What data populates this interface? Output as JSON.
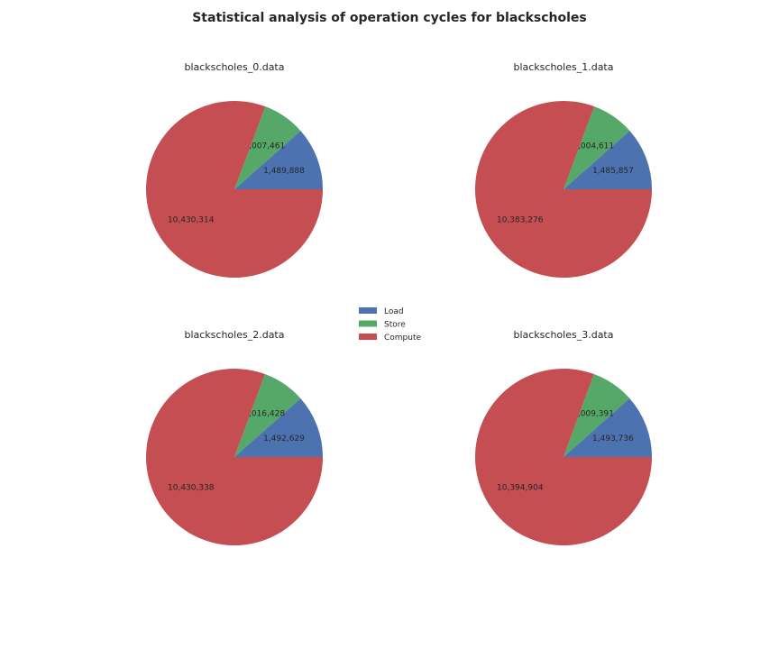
{
  "title": "Statistical analysis of operation cycles for blackscholes",
  "legend": {
    "placement": "center",
    "entries": [
      "Load",
      "Store",
      "Compute"
    ]
  },
  "colors": {
    "Load": "#4c72b0",
    "Store": "#55a868",
    "Compute": "#c44e52"
  },
  "chart_data": [
    {
      "type": "pie",
      "title": "blackscholes_0.data",
      "labels": [
        "Load",
        "Store",
        "Compute"
      ],
      "values": [
        1489888,
        1007461,
        10430314
      ],
      "value_labels": [
        "1,489,888",
        "1,007,461",
        "10,430,314"
      ]
    },
    {
      "type": "pie",
      "title": "blackscholes_1.data",
      "labels": [
        "Load",
        "Store",
        "Compute"
      ],
      "values": [
        1485857,
        1004611,
        10383276
      ],
      "value_labels": [
        "1,485,857",
        "1,004,611",
        "10,383,276"
      ]
    },
    {
      "type": "pie",
      "title": "blackscholes_2.data",
      "labels": [
        "Load",
        "Store",
        "Compute"
      ],
      "values": [
        1492629,
        1016428,
        10430338
      ],
      "value_labels": [
        "1,492,629",
        "1,016,428",
        "10,430,338"
      ]
    },
    {
      "type": "pie",
      "title": "blackscholes_3.data",
      "labels": [
        "Load",
        "Store",
        "Compute"
      ],
      "values": [
        1493736,
        1009391,
        10394904
      ],
      "value_labels": [
        "1,493,736",
        "1,009,391",
        "10,394,904"
      ]
    }
  ]
}
